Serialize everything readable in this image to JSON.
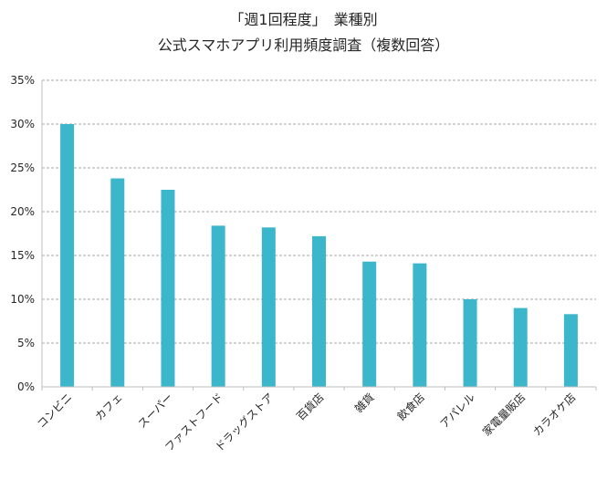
{
  "chart_data": {
    "type": "bar",
    "title": [
      "「週1回程度」　業種別",
      "公式スマホアプリ利用頻度調査（複数回答）"
    ],
    "categories": [
      "コンビニ",
      "カフェ",
      "スーパー",
      "ファストフード",
      "ドラッグストア",
      "百貨店",
      "雑貨",
      "飲食店",
      "アパレル",
      "家電量販店",
      "カラオケ店"
    ],
    "values": [
      30.0,
      23.8,
      22.5,
      18.4,
      18.2,
      17.2,
      14.3,
      14.1,
      10.0,
      9.0,
      8.3
    ],
    "ylim": [
      0,
      35
    ],
    "yticks": [
      "0%",
      "5%",
      "10%",
      "15%",
      "20%",
      "25%",
      "30%",
      "35%"
    ],
    "ytick_values": [
      0,
      5,
      10,
      15,
      20,
      25,
      30,
      35
    ],
    "xlabel": "",
    "ylabel": "",
    "grid": true,
    "legend": "none",
    "colors": {
      "bar": "#3cb6ca",
      "grid": "#a6a6a6",
      "axis": "#bfbfbf"
    }
  }
}
